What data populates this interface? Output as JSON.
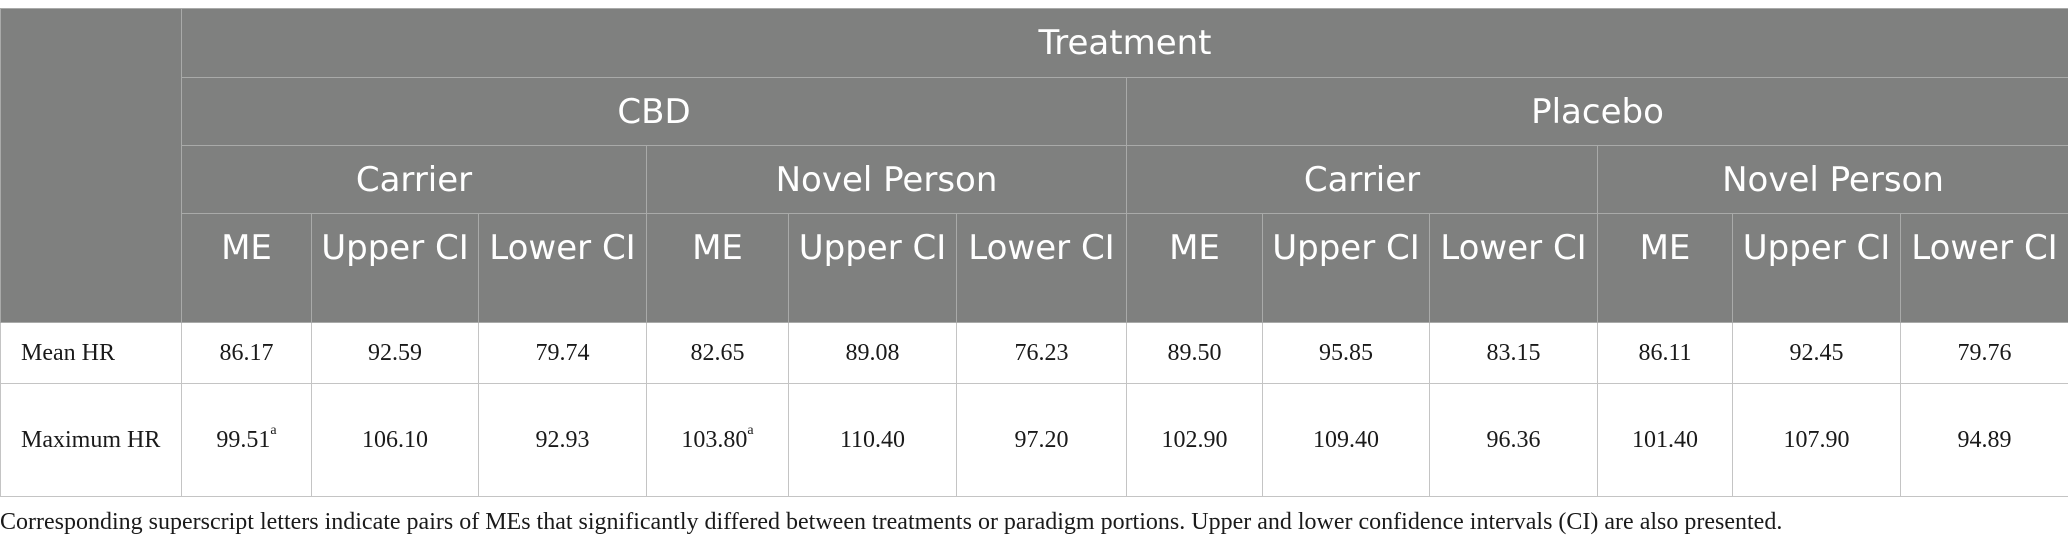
{
  "table": {
    "top_header": "Treatment",
    "groups": [
      "CBD",
      "Placebo"
    ],
    "subgroups": [
      "Carrier",
      "Novel Person",
      "Carrier",
      "Novel Person"
    ],
    "columns": [
      "ME",
      "Upper CI",
      "Lower CI",
      "ME",
      "Upper CI",
      "Lower CI",
      "ME",
      "Upper CI",
      "Lower CI",
      "ME",
      "Upper CI",
      "Lower CI"
    ],
    "rows": [
      {
        "label": "Mean HR",
        "values": [
          "86.17",
          "92.59",
          "79.74",
          "82.65",
          "89.08",
          "76.23",
          "89.50",
          "95.85",
          "83.15",
          "86.11",
          "92.45",
          "79.76"
        ],
        "sups": [
          "",
          "",
          "",
          "",
          "",
          "",
          "",
          "",
          "",
          "",
          "",
          ""
        ]
      },
      {
        "label": "Maximum HR",
        "values": [
          "99.51",
          "106.10",
          "92.93",
          "103.80",
          "110.40",
          "97.20",
          "102.90",
          "109.40",
          "96.36",
          "101.40",
          "107.90",
          "94.89"
        ],
        "sups": [
          "a",
          "",
          "",
          "a",
          "",
          "",
          "",
          "",
          "",
          "",
          "",
          ""
        ]
      }
    ]
  },
  "footnote": "Corresponding superscript letters indicate pairs of MEs that significantly differed between treatments or paradigm portions. Upper and lower confidence intervals (CI) are also presented."
}
